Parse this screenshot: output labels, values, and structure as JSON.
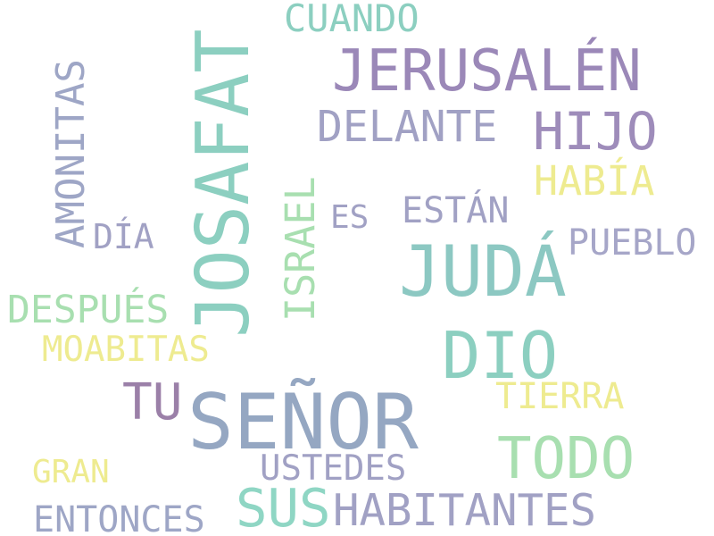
{
  "colors": {
    "background": "#ffffff",
    "teal": "#8ccfc0",
    "slate": "#95a7c2",
    "lavender": "#9e93be",
    "purple": "#9b80a8",
    "grayblue": "#a1a1c4",
    "mint": "#a8dfb0",
    "yellow": "#eeeb90"
  },
  "words": {
    "senor": "SEÑOR",
    "josafat": "JOSAFAT",
    "juda": "JUDÁ",
    "jerusalen": "JERUSALÉN",
    "dio": "DIO",
    "todo": "TODO",
    "habitantes": "HABITANTES",
    "sus": "SUS",
    "hijo": "HIJO",
    "israel": "ISRAEL",
    "amonitas": "AMONITAS",
    "tu": "TU",
    "delante": "DELANTE",
    "cuando": "CUANDO",
    "pueblo": "PUEBLO",
    "habia": "HABÍA",
    "tierra": "TIERRA",
    "estan": "ESTÁN",
    "despues": "DESPUÉS",
    "moabitas": "MOABITAS",
    "ustedes": "USTEDES",
    "entonces": "ENTONCES",
    "dia": "DÍA",
    "es": "ES",
    "gran": "GRAN"
  }
}
